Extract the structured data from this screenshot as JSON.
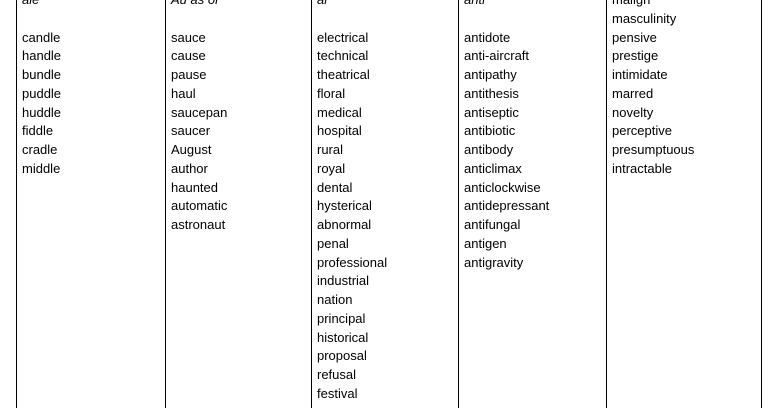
{
  "columns": [
    {
      "header": "ale",
      "gap": true,
      "words": [
        "candle",
        "handle",
        "bundle",
        "puddle",
        "huddle",
        "fiddle",
        "cradle",
        "middle"
      ]
    },
    {
      "header": "Au as or",
      "gap": true,
      "words": [
        "sauce",
        "cause",
        "pause",
        "haul",
        "saucepan",
        "saucer",
        "August",
        "author",
        "haunted",
        "automatic",
        "astronaut"
      ]
    },
    {
      "header": "al",
      "gap": true,
      "words": [
        "electrical",
        "technical",
        "theatrical",
        "floral",
        "medical",
        "hospital",
        "rural",
        "royal",
        "dental",
        "hysterical",
        "abnormal",
        "penal",
        "professional",
        "industrial",
        "nation",
        "principal",
        "historical",
        "proposal",
        "refusal",
        "festival"
      ]
    },
    {
      "header": "anti",
      "gap": true,
      "words": [
        "antidote",
        "anti-aircraft",
        "antipathy",
        "antithesis",
        "antiseptic",
        "antibiotic",
        "antibody",
        "anticlimax",
        "anticlockwise",
        "antidepressant",
        "antifungal",
        "antigen",
        "antigravity"
      ]
    },
    {
      "header": "",
      "gap": false,
      "words": [
        "malign",
        "masculinity",
        "pensive",
        "prestige",
        "intimidate",
        "marred",
        "novelty",
        "perceptive",
        "presumptuous",
        "intractable"
      ]
    }
  ]
}
